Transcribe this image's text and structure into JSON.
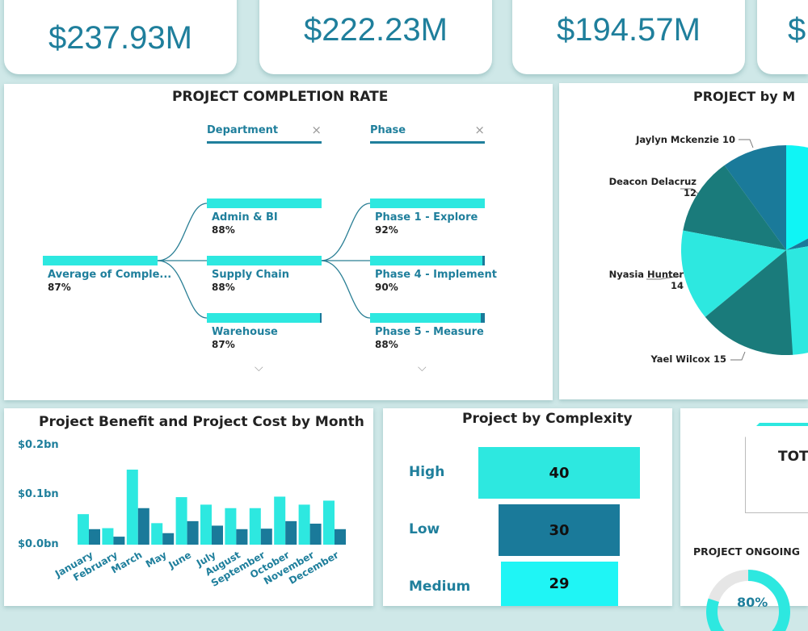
{
  "kpis": [
    "$237.93M",
    "$222.23M",
    "$194.57M",
    "$"
  ],
  "completion": {
    "title": "PROJECT COMPLETION RATE",
    "headers": [
      {
        "label": "Department",
        "close": "×"
      },
      {
        "label": "Phase",
        "close": "×"
      }
    ],
    "root": {
      "label": "Average of Comple...",
      "value": "87%"
    },
    "departments": [
      {
        "label": "Admin & BI",
        "value": "88%"
      },
      {
        "label": "Supply Chain",
        "value": "88%"
      },
      {
        "label": "Warehouse",
        "value": "87%"
      }
    ],
    "phases": [
      {
        "label": "Phase 1 - Explore",
        "value": "92%"
      },
      {
        "label": "Phase 4 - Implement",
        "value": "90%"
      },
      {
        "label": "Phase 5 - Measure",
        "value": "88%"
      }
    ],
    "more": "⌵"
  },
  "manager": {
    "title": "PROJECT by M",
    "slices": [
      {
        "name": "Jaylyn Mckenzie",
        "value": 10,
        "color": "#1a7a9a"
      },
      {
        "name": "Deacon Delacruz",
        "value": 12,
        "color": "#1a7b7b"
      },
      {
        "name": "Nyasia Hunter",
        "value": 14,
        "color": "#2de8e0"
      },
      {
        "name": "Yael Wilcox",
        "value": 15,
        "color": "#1a7b7b"
      }
    ]
  },
  "chart_data": {
    "type": "bar",
    "title": "Project Benefit and Project Cost by Month",
    "categories": [
      "January",
      "February",
      "March",
      "May",
      "June",
      "July",
      "August",
      "September",
      "October",
      "November",
      "December"
    ],
    "yticks": [
      "$0.2bn",
      "$0.1bn",
      "$0.0bn"
    ],
    "ylim": [
      0,
      0.2
    ],
    "series": [
      {
        "values": [
          0.061,
          0.033,
          0.15,
          0.043,
          0.095,
          0.08,
          0.073,
          0.073,
          0.096,
          0.08,
          0.088
        ],
        "color": "#2de8e0"
      },
      {
        "values": [
          0.031,
          0.016,
          0.073,
          0.023,
          0.047,
          0.038,
          0.031,
          0.032,
          0.047,
          0.042,
          0.031
        ],
        "color": "#1a7a9a"
      }
    ]
  },
  "complexity": {
    "title": "Project by Complexity",
    "items": [
      {
        "label": "High",
        "value": 40,
        "color": "#2de8e0"
      },
      {
        "label": "Low",
        "value": 30,
        "color": "#1a7a9a"
      },
      {
        "label": "Medium",
        "value": 29,
        "color": "#1ff5f5"
      }
    ]
  },
  "total": {
    "label": "TOT"
  },
  "ongoing": {
    "title": "PROJECT ONGOING",
    "value": "80%",
    "fraction": 0.8
  }
}
